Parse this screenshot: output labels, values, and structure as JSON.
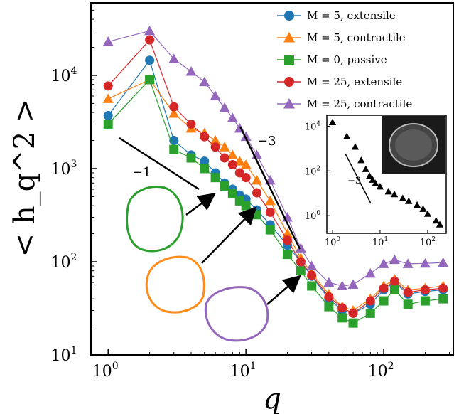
{
  "chart_data": {
    "type": "scatter",
    "xlabel": "q",
    "ylabel": "< h_q^2 >",
    "xscale": "log",
    "yscale": "log",
    "xlim": [
      0.75,
      320
    ],
    "ylim": [
      10,
      60000
    ],
    "xticks": [
      {
        "base": "10",
        "exp": "0",
        "value": 1
      },
      {
        "base": "10",
        "exp": "1",
        "value": 10
      },
      {
        "base": "10",
        "exp": "2",
        "value": 100
      }
    ],
    "yticks": [
      {
        "base": "10",
        "exp": "1",
        "value": 10
      },
      {
        "base": "10",
        "exp": "2",
        "value": 100
      },
      {
        "base": "10",
        "exp": "3",
        "value": 1000
      },
      {
        "base": "10",
        "exp": "4",
        "value": 10000
      }
    ],
    "legend_position": "top-right",
    "series": [
      {
        "name": "M = 5, extensile",
        "color": "#1f77b4",
        "marker": "circle",
        "points": [
          [
            1,
            3700
          ],
          [
            2,
            14500
          ],
          [
            3,
            2000
          ],
          [
            4,
            1400
          ],
          [
            5,
            1200
          ],
          [
            6,
            900
          ],
          [
            7,
            700
          ],
          [
            8,
            600
          ],
          [
            9,
            520
          ],
          [
            10,
            470
          ],
          [
            12,
            360
          ],
          [
            15,
            250
          ],
          [
            20,
            150
          ],
          [
            25,
            100
          ],
          [
            30,
            70
          ],
          [
            40,
            40
          ],
          [
            50,
            30
          ],
          [
            60,
            28
          ],
          [
            80,
            35
          ],
          [
            100,
            50
          ],
          [
            120,
            60
          ],
          [
            150,
            45
          ],
          [
            200,
            48
          ],
          [
            270,
            50
          ]
        ]
      },
      {
        "name": "M = 5, contractile",
        "color": "#ff7f0e",
        "marker": "triangle",
        "points": [
          [
            1,
            5600
          ],
          [
            2,
            9000
          ],
          [
            3,
            3900
          ],
          [
            4,
            2700
          ],
          [
            5,
            2400
          ],
          [
            6,
            2000
          ],
          [
            7,
            1700
          ],
          [
            8,
            1400
          ],
          [
            9,
            1200
          ],
          [
            10,
            1100
          ],
          [
            12,
            750
          ],
          [
            15,
            450
          ],
          [
            20,
            200
          ],
          [
            25,
            110
          ],
          [
            30,
            75
          ],
          [
            40,
            45
          ],
          [
            50,
            33
          ],
          [
            60,
            30
          ],
          [
            80,
            40
          ],
          [
            100,
            55
          ],
          [
            120,
            65
          ],
          [
            150,
            50
          ],
          [
            200,
            52
          ],
          [
            270,
            55
          ]
        ]
      },
      {
        "name": "M = 0, passive",
        "color": "#2ca02c",
        "marker": "square",
        "points": [
          [
            1,
            3000
          ],
          [
            2,
            9000
          ],
          [
            3,
            1600
          ],
          [
            4,
            1300
          ],
          [
            5,
            1000
          ],
          [
            6,
            800
          ],
          [
            7,
            650
          ],
          [
            8,
            540
          ],
          [
            9,
            450
          ],
          [
            10,
            400
          ],
          [
            12,
            320
          ],
          [
            15,
            220
          ],
          [
            20,
            120
          ],
          [
            25,
            80
          ],
          [
            30,
            55
          ],
          [
            40,
            33
          ],
          [
            50,
            25
          ],
          [
            60,
            22
          ],
          [
            80,
            28
          ],
          [
            100,
            38
          ],
          [
            120,
            50
          ],
          [
            150,
            35
          ],
          [
            200,
            38
          ],
          [
            270,
            40
          ]
        ]
      },
      {
        "name": "M = 25, extensile",
        "color": "#d62728",
        "marker": "circle",
        "points": [
          [
            1,
            7700
          ],
          [
            2,
            24000
          ],
          [
            3,
            4600
          ],
          [
            4,
            3000
          ],
          [
            5,
            2200
          ],
          [
            6,
            1700
          ],
          [
            7,
            1300
          ],
          [
            8,
            1100
          ],
          [
            9,
            900
          ],
          [
            10,
            800
          ],
          [
            12,
            550
          ],
          [
            15,
            340
          ],
          [
            20,
            170
          ],
          [
            25,
            100
          ],
          [
            30,
            72
          ],
          [
            40,
            42
          ],
          [
            50,
            32
          ],
          [
            60,
            28
          ],
          [
            80,
            38
          ],
          [
            100,
            52
          ],
          [
            120,
            62
          ],
          [
            150,
            47
          ],
          [
            200,
            50
          ],
          [
            270,
            52
          ]
        ]
      },
      {
        "name": "M = 25, contractile",
        "color": "#9467bd",
        "marker": "triangle",
        "points": [
          [
            1,
            23000
          ],
          [
            2,
            30000
          ],
          [
            3,
            15000
          ],
          [
            4,
            11000
          ],
          [
            5,
            8500
          ],
          [
            6,
            6000
          ],
          [
            7,
            4500
          ],
          [
            8,
            3500
          ],
          [
            9,
            2700
          ],
          [
            10,
            2200
          ],
          [
            12,
            1400
          ],
          [
            15,
            750
          ],
          [
            20,
            300
          ],
          [
            25,
            140
          ],
          [
            30,
            90
          ],
          [
            40,
            60
          ],
          [
            50,
            55
          ],
          [
            60,
            57
          ],
          [
            80,
            75
          ],
          [
            100,
            95
          ],
          [
            120,
            105
          ],
          [
            150,
            95
          ],
          [
            200,
            96
          ],
          [
            270,
            98
          ]
        ]
      }
    ],
    "annotations": [
      {
        "text": "−1",
        "kind": "slope"
      },
      {
        "text": "−3",
        "kind": "slope"
      }
    ],
    "inset": {
      "type": "scatter",
      "marker": "triangle",
      "color": "#000000",
      "xscale": "log",
      "yscale": "log",
      "xticks": [
        {
          "base": "10",
          "exp": "0"
        },
        {
          "base": "10",
          "exp": "1"
        },
        {
          "base": "10",
          "exp": "2"
        }
      ],
      "yticks": [
        {
          "base": "10",
          "exp": "0"
        },
        {
          "base": "10",
          "exp": "2"
        },
        {
          "base": "10",
          "exp": "4"
        }
      ],
      "slope_label": "−3",
      "points": [
        [
          1,
          15000
        ],
        [
          2,
          3500
        ],
        [
          3,
          1200
        ],
        [
          4,
          300
        ],
        [
          5,
          120
        ],
        [
          6,
          60
        ],
        [
          7,
          40
        ],
        [
          8,
          28
        ],
        [
          10,
          20
        ],
        [
          15,
          12
        ],
        [
          20,
          9
        ],
        [
          30,
          6
        ],
        [
          40,
          4.5
        ],
        [
          60,
          3
        ],
        [
          80,
          2
        ],
        [
          100,
          1.2
        ],
        [
          150,
          0.6
        ],
        [
          180,
          0.4
        ]
      ]
    }
  }
}
